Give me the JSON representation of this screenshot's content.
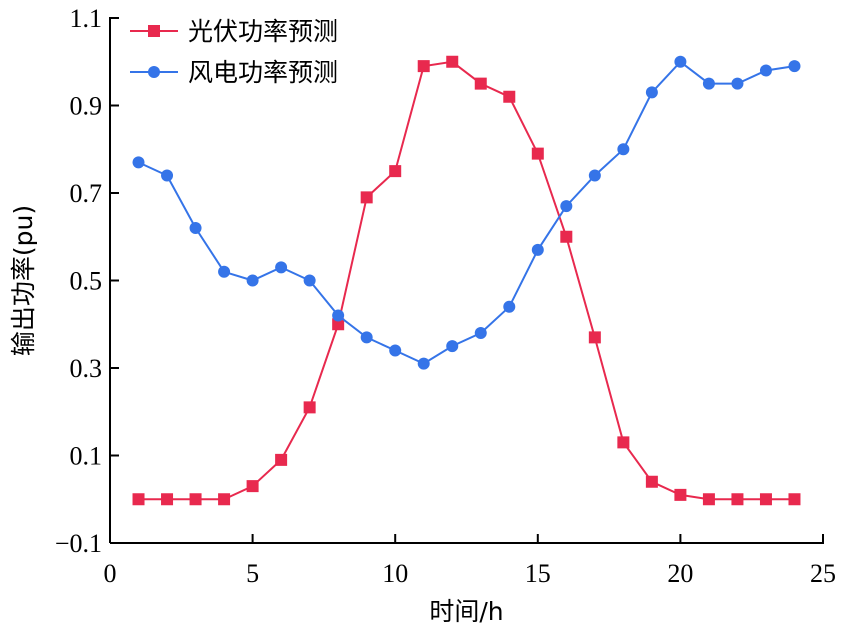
{
  "chart_data": {
    "type": "line",
    "title": "",
    "xlabel": "时间/h",
    "ylabel": "输出功率(pu)",
    "xlim": [
      0,
      25
    ],
    "ylim": [
      -0.1,
      1.1
    ],
    "xticks": [
      0,
      5,
      10,
      15,
      20,
      25
    ],
    "xtick_labels": [
      "0",
      "5",
      "10",
      "15",
      "20",
      "25"
    ],
    "yticks": [
      -0.1,
      0.1,
      0.3,
      0.5,
      0.7,
      0.9,
      1.1
    ],
    "ytick_labels": [
      "−0.1",
      "0.1",
      "0.3",
      "0.5",
      "0.7",
      "0.9",
      "1.1"
    ],
    "grid": false,
    "legend_position": "top-left",
    "x": [
      1,
      2,
      3,
      4,
      5,
      6,
      7,
      8,
      9,
      10,
      11,
      12,
      13,
      14,
      15,
      16,
      17,
      18,
      19,
      20,
      21,
      22,
      23,
      24
    ],
    "series": [
      {
        "name": "光伏功率预测",
        "color": "#e8294e",
        "marker": "square",
        "values": [
          0.0,
          0.0,
          0.0,
          0.0,
          0.03,
          0.09,
          0.21,
          0.4,
          0.69,
          0.75,
          0.99,
          1.0,
          0.95,
          0.92,
          0.79,
          0.6,
          0.37,
          0.13,
          0.04,
          0.01,
          0.0,
          0.0,
          0.0,
          0.0
        ]
      },
      {
        "name": "风电功率预测",
        "color": "#3574e8",
        "marker": "circle",
        "values": [
          0.77,
          0.74,
          0.62,
          0.52,
          0.5,
          0.53,
          0.5,
          0.42,
          0.37,
          0.34,
          0.31,
          0.35,
          0.38,
          0.44,
          0.57,
          0.67,
          0.74,
          0.8,
          0.93,
          1.0,
          0.95,
          0.95,
          0.98,
          0.99
        ]
      }
    ]
  }
}
